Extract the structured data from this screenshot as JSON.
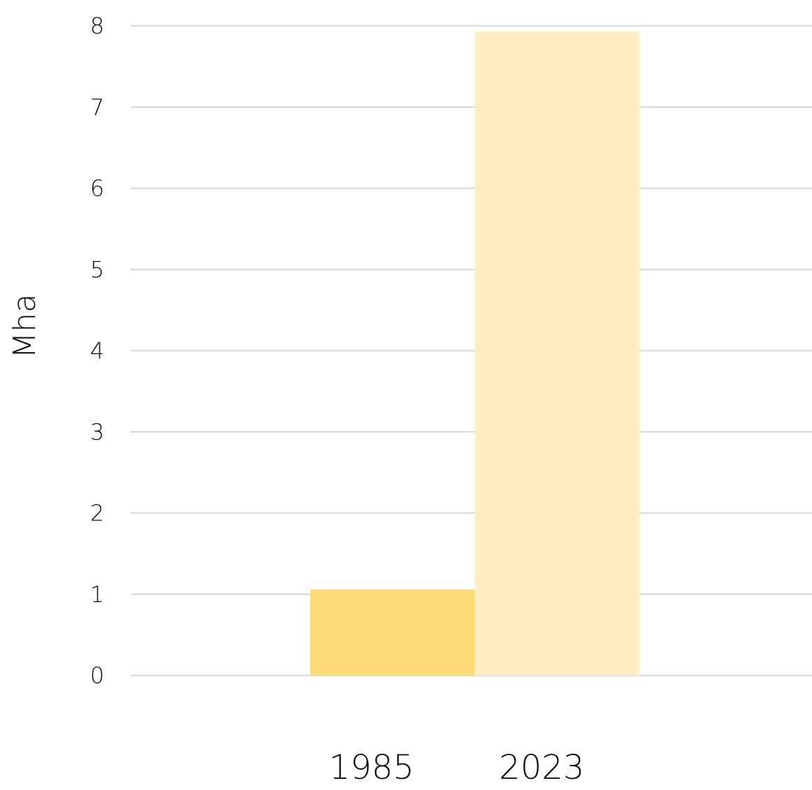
{
  "chart_data": {
    "type": "bar",
    "categories": [
      "1985",
      "2023"
    ],
    "values": [
      1.06,
      7.93
    ],
    "ylabel": "Mha",
    "xlabel": "",
    "ylim": [
      0,
      8
    ],
    "yticks": [
      0,
      1,
      2,
      3,
      4,
      5,
      6,
      7,
      8
    ],
    "grid": true,
    "colors": {
      "bars": [
        "#FFDA7B",
        "#FFEEC4"
      ],
      "grid": "#DDDDDD",
      "text": "#111111"
    }
  }
}
